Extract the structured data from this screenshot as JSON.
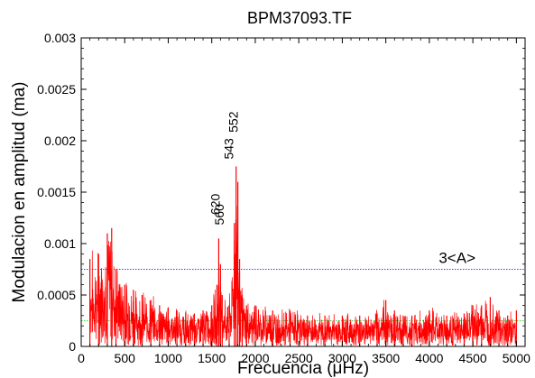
{
  "chart_data": {
    "type": "line",
    "title": "BPM37093.TF",
    "xlabel": "Frecuencia (μHz)",
    "ylabel": "Modulacion en amplitud (ma)",
    "xlim": [
      0,
      5100
    ],
    "ylim": [
      0,
      0.003
    ],
    "x_ticks": [
      0,
      500,
      1000,
      1500,
      2000,
      2500,
      3000,
      3500,
      4000,
      4500,
      5000
    ],
    "y_ticks": [
      0,
      0.0005,
      0.001,
      0.0015,
      0.002,
      0.0025,
      0.003
    ],
    "y_tick_labels": [
      "0",
      "0.0005",
      "0.001",
      "0.0015",
      "0.002",
      "0.0025",
      "0.003"
    ],
    "grid": false,
    "series": [
      {
        "color": "#ff0000",
        "x": [
          100,
          200,
          300,
          350,
          400,
          500,
          600,
          700,
          800,
          900,
          1000,
          1100,
          1200,
          1300,
          1400,
          1500,
          1560,
          1580,
          1600,
          1620,
          1700,
          1760,
          1780,
          1800,
          1820,
          1850,
          1900,
          2000,
          2200,
          2400,
          2600,
          2800,
          3000,
          3200,
          3400,
          3500,
          3600,
          3700,
          3800,
          4000,
          4200,
          4400,
          4500,
          4600,
          4700,
          4800,
          4900,
          5000
        ],
        "y": [
          0.00085,
          0.0009,
          0.0011,
          0.00115,
          0.00075,
          0.0006,
          0.00055,
          0.0005,
          0.00045,
          0.0004,
          0.00038,
          0.00035,
          0.00033,
          0.00032,
          0.00035,
          0.0004,
          0.0006,
          0.00105,
          0.0008,
          0.0005,
          0.0004,
          0.0012,
          0.00175,
          0.0016,
          0.00085,
          0.0005,
          0.0004,
          0.0004,
          0.00035,
          0.00035,
          0.0003,
          0.0003,
          0.0003,
          0.0003,
          0.00032,
          0.00045,
          0.00035,
          0.0003,
          0.0003,
          0.00035,
          0.0003,
          0.00032,
          0.0004,
          0.0004,
          0.00048,
          0.00035,
          0.0003,
          0.00035
        ]
      }
    ],
    "reference_lines": [
      {
        "y": 0.00075,
        "color": "#0000ff",
        "style": "dotted",
        "label": "3<A>"
      },
      {
        "y": 0.00025,
        "color": "#00cc00",
        "style": "dotted"
      }
    ],
    "annotations": [
      {
        "text": "620",
        "x": 1590,
        "y": 0.00128,
        "rotate": true
      },
      {
        "text": "560",
        "x": 1640,
        "y": 0.00118,
        "rotate": true
      },
      {
        "text": "543",
        "x": 1745,
        "y": 0.00182,
        "rotate": true
      },
      {
        "text": "552",
        "x": 1800,
        "y": 0.00208,
        "rotate": true
      }
    ]
  }
}
